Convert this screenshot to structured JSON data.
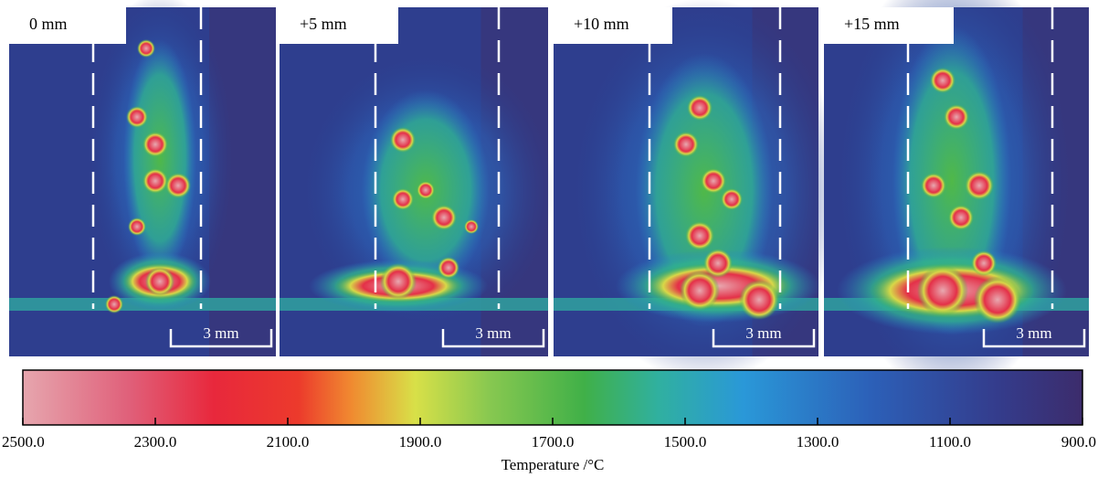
{
  "panels": [
    {
      "label": "0 mm",
      "scale": "3 mm"
    },
    {
      "label": "+5 mm",
      "scale": "3 mm"
    },
    {
      "label": "+10 mm",
      "scale": "3 mm"
    },
    {
      "label": "+15 mm",
      "scale": "3 mm"
    }
  ],
  "colorbar": {
    "title": "Temperature /°C",
    "range": [
      2500,
      900
    ],
    "ticks": [
      {
        "value": 2500,
        "label": "2500.0"
      },
      {
        "value": 2300,
        "label": "2300.0"
      },
      {
        "value": 2100,
        "label": "2100.0"
      },
      {
        "value": 1900,
        "label": "1900.0"
      },
      {
        "value": 1700,
        "label": "1700.0"
      },
      {
        "value": 1500,
        "label": "1500.0"
      },
      {
        "value": 1300,
        "label": "1300.0"
      },
      {
        "value": 1100,
        "label": "1100.0"
      },
      {
        "value": 900,
        "label": "900.0"
      }
    ]
  }
}
